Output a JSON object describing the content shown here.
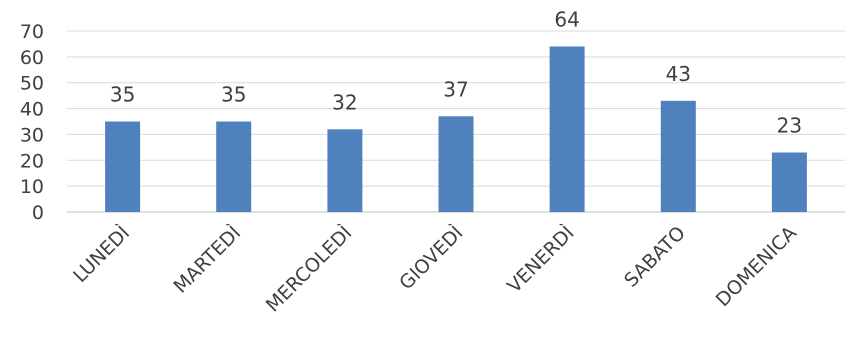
{
  "chart_data": {
    "type": "bar",
    "categories": [
      "LUNEDÌ",
      "MARTEDÌ",
      "MERCOLEDÌ",
      "GIOVEDÌ",
      "VENERDÌ",
      "SABATO",
      "DOMENICA"
    ],
    "values": [
      35,
      35,
      32,
      37,
      64,
      43,
      23
    ],
    "data_labels": [
      "35",
      "35",
      "32",
      "37",
      "64",
      "43",
      "23"
    ],
    "title": "",
    "xlabel": "",
    "ylabel": "",
    "ylim": [
      0,
      70
    ],
    "yticks": [
      0,
      10,
      20,
      30,
      40,
      50,
      60,
      70
    ],
    "ytick_labels": [
      "0",
      "10",
      "20",
      "30",
      "40",
      "50",
      "60",
      "70"
    ],
    "grid": true,
    "legend": "none",
    "bar_color": "#4f81bd"
  }
}
